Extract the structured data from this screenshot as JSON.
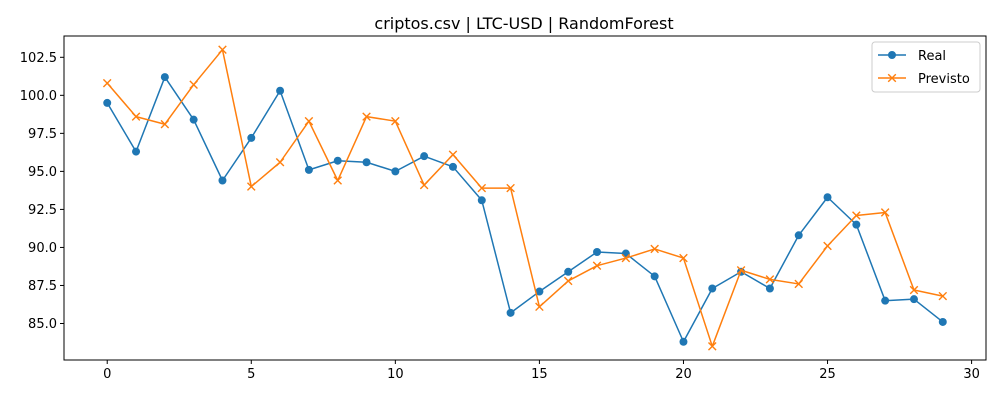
{
  "chart_data": {
    "type": "line",
    "title": "criptos.csv | LTC-USD | RandomForest",
    "xlabel": "",
    "ylabel": "",
    "x": [
      0,
      1,
      2,
      3,
      4,
      5,
      6,
      7,
      8,
      9,
      10,
      11,
      12,
      13,
      14,
      15,
      16,
      17,
      18,
      19,
      20,
      21,
      22,
      23,
      24,
      25,
      26,
      27,
      28,
      29
    ],
    "xlim": [
      -1.5,
      30.5
    ],
    "ylim": [
      82.6,
      103.9
    ],
    "xticks": [
      0,
      5,
      10,
      15,
      20,
      25,
      30
    ],
    "yticks": [
      85.0,
      87.5,
      90.0,
      92.5,
      95.0,
      97.5,
      100.0,
      102.5
    ],
    "xtick_labels": [
      "0",
      "5",
      "10",
      "15",
      "20",
      "25",
      "30"
    ],
    "ytick_labels": [
      "85.0",
      "87.5",
      "90.0",
      "92.5",
      "95.0",
      "97.5",
      "100.0",
      "102.5"
    ],
    "grid": false,
    "legend": "top-right",
    "series": [
      {
        "name": "Real",
        "color": "#1f77b4",
        "marker": "circle",
        "values": [
          99.5,
          96.3,
          101.2,
          98.4,
          94.4,
          97.2,
          100.3,
          95.1,
          95.7,
          95.6,
          95.0,
          96.0,
          95.3,
          93.1,
          85.7,
          87.1,
          88.4,
          89.7,
          89.6,
          88.1,
          83.8,
          87.3,
          88.4,
          87.3,
          90.8,
          93.3,
          91.5,
          86.5,
          86.6,
          85.1
        ]
      },
      {
        "name": "Previsto",
        "color": "#ff7f0e",
        "marker": "x",
        "values": [
          100.8,
          98.6,
          98.1,
          100.7,
          103.0,
          94.0,
          95.6,
          98.3,
          94.4,
          98.6,
          98.3,
          94.1,
          96.1,
          93.9,
          93.9,
          86.1,
          87.8,
          88.8,
          89.3,
          89.9,
          89.3,
          83.5,
          88.5,
          87.9,
          87.6,
          90.1,
          92.1,
          92.3,
          87.2,
          86.8
        ]
      }
    ]
  }
}
